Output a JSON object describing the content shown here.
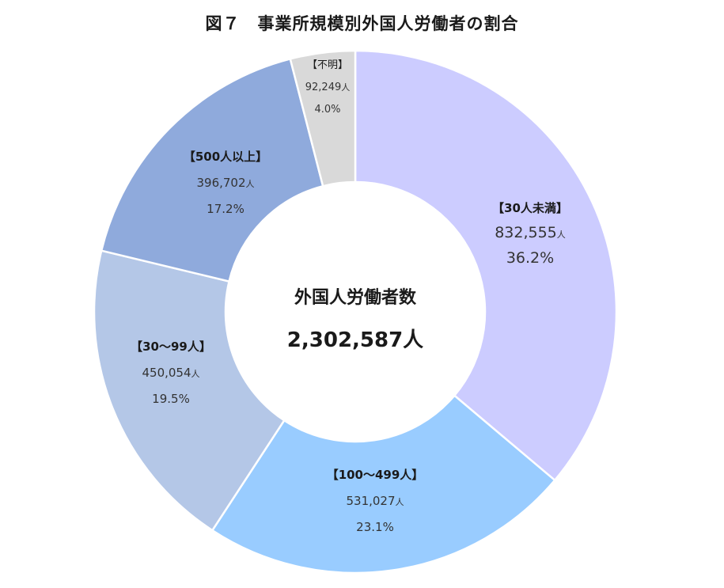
{
  "title": "図７　事業所規模別外国人労働者の割合",
  "chart_data": {
    "type": "pie",
    "donut": true,
    "unit": "人",
    "center": {
      "label": "外国人労働者数",
      "total": "2,302,587人"
    },
    "slices": [
      {
        "label": "【30人未満】",
        "value": 832555,
        "value_text": "832,555",
        "percent": "36.2%",
        "color": "#ccccff"
      },
      {
        "label": "【100～499人】",
        "value": 531027,
        "value_text": "531,027",
        "percent": "23.1%",
        "color": "#99ccff"
      },
      {
        "label": "【30～99人】",
        "value": 450054,
        "value_text": "450,054",
        "percent": "19.5%",
        "color": "#b4c7e7"
      },
      {
        "label": "【500人以上】",
        "value": 396702,
        "value_text": "396,702",
        "percent": "17.2%",
        "color": "#8faadc"
      },
      {
        "label": "【不明】",
        "value": 92249,
        "value_text": "92,249",
        "percent": "4.0%",
        "color": "#d9d9d9"
      }
    ]
  }
}
